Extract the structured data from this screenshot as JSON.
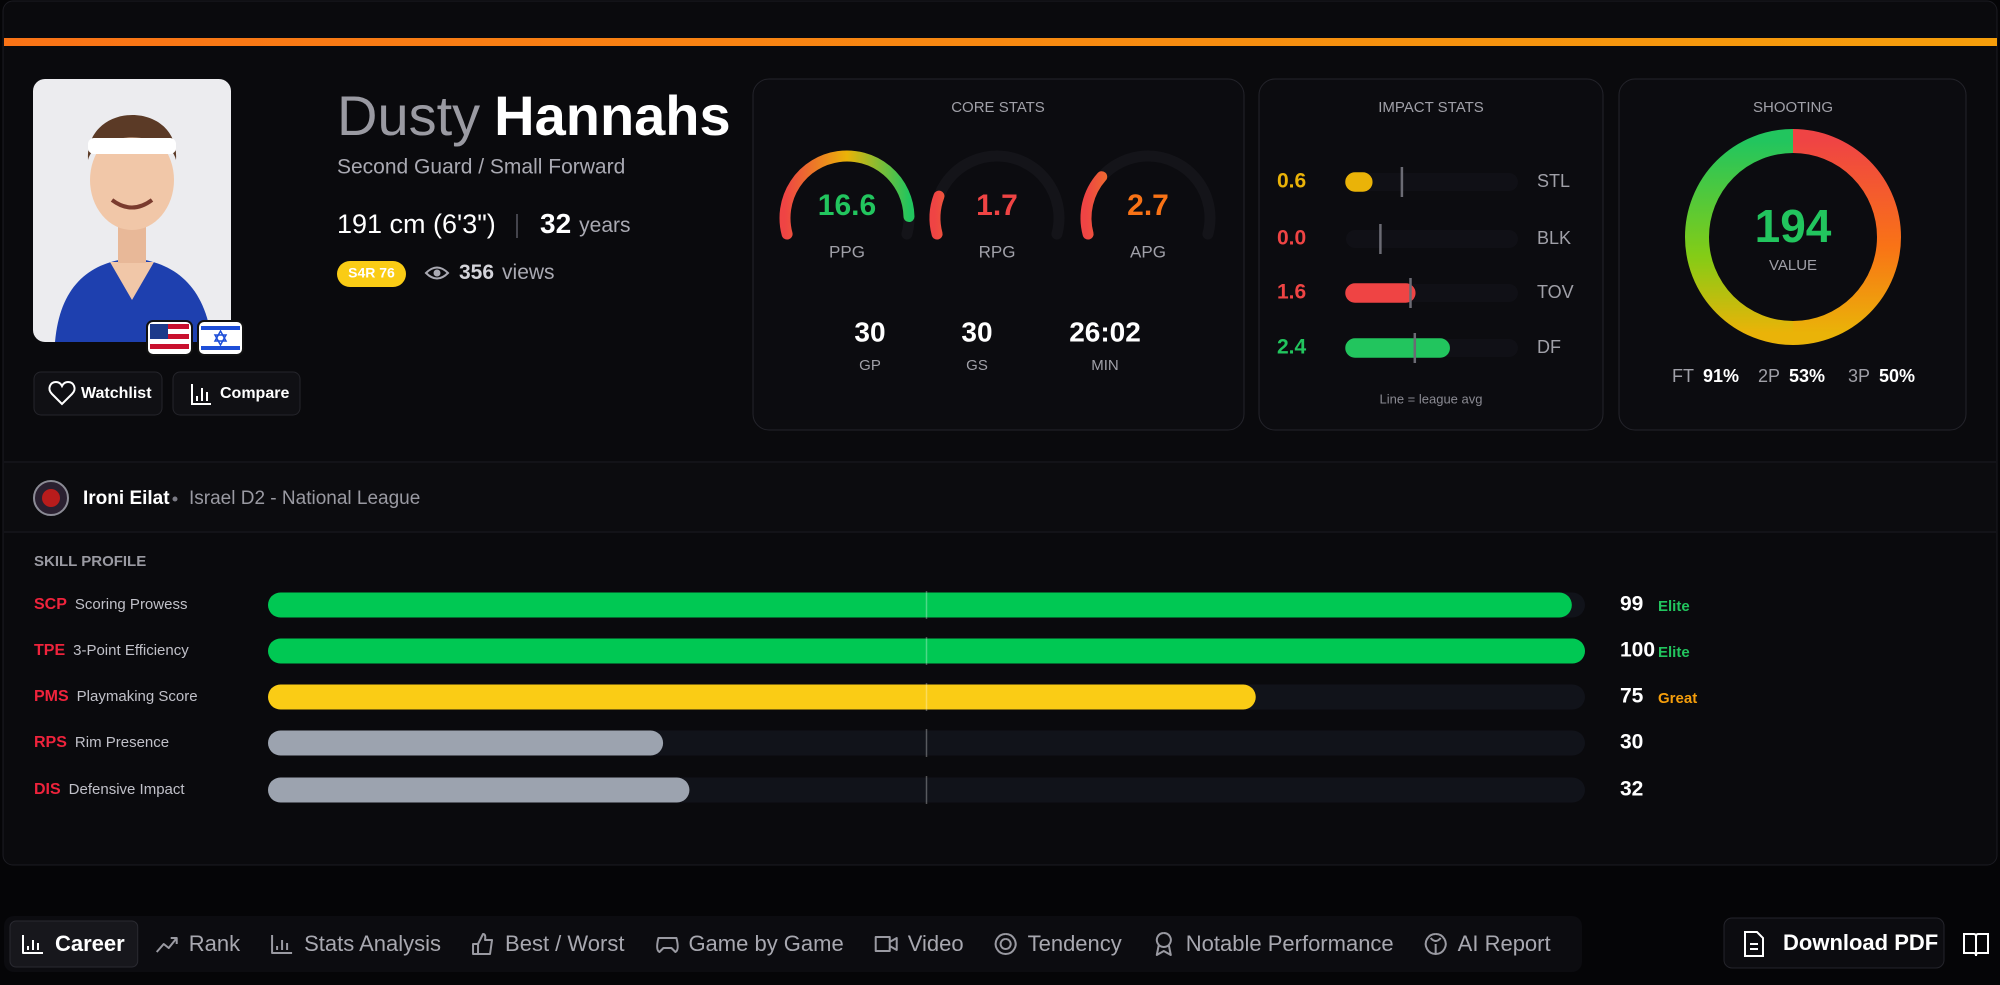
{
  "header": {
    "first_name": "Dusty",
    "last_name": "Hannahs",
    "position": "Second Guard / Small Forward",
    "height": "191 cm (6'3\")",
    "age": 32,
    "age_unit": "years",
    "rating_badge": "S4R 76",
    "views": 356,
    "views_label": "views"
  },
  "actions": [
    "Watchlist",
    "Compare"
  ],
  "core_stats": {
    "title": "CORE STATS",
    "gauges": [
      {
        "label": "PPG",
        "value": 16.6,
        "range": [
          0,
          18
        ],
        "color": "#22c55e"
      },
      {
        "label": "RPG",
        "value": 1.7,
        "range": [
          0,
          10
        ],
        "color": "#ef4444"
      },
      {
        "label": "APG",
        "value": 2.7,
        "range": [
          0,
          10
        ],
        "color": "#f97316"
      }
    ],
    "totals": [
      {
        "label": "GP",
        "value": 30
      },
      {
        "label": "GS",
        "value": 30
      },
      {
        "label": "MIN",
        "value": "26:02"
      }
    ]
  },
  "impact_stats": {
    "title": "IMPACT STATS",
    "xlim": [
      0,
      4
    ],
    "rows": [
      {
        "label": "STL",
        "value": 0.6,
        "league_avg": 1.3,
        "color": "#eab308"
      },
      {
        "label": "BLK",
        "value": 0,
        "value_label": "0.0",
        "league_avg": 0.8,
        "color": "#ef4444"
      },
      {
        "label": "TOV",
        "value": 1.6,
        "league_avg": 1.5,
        "color": "#ef4444"
      },
      {
        "label": "DF",
        "value": 2.4,
        "league_avg": 1.6,
        "color": "#22c55e"
      }
    ],
    "note": "Line = league avg"
  },
  "shooting": {
    "title": "SHOOTING",
    "value": 194,
    "value_label": "VALUE",
    "splits": [
      {
        "label": "FT",
        "value": 91,
        "value_label": "91%"
      },
      {
        "label": "2P",
        "value": 53,
        "value_label": "53%"
      },
      {
        "label": "3P",
        "value": 50,
        "value_label": "50%"
      }
    ]
  },
  "team": {
    "name": "Ironi Eilat",
    "league": "Israel D2 - National League"
  },
  "skill_profile": {
    "title": "SKILL PROFILE",
    "xlim": [
      0,
      100
    ],
    "midline": 50,
    "rows": [
      {
        "code": "SCP",
        "name": "Scoring Prowess",
        "value": 99,
        "tier": "Elite",
        "color": "#00c853",
        "tier_color": "#22c55e"
      },
      {
        "code": "TPE",
        "name": "3-Point Efficiency",
        "value": 100,
        "tier": "Elite",
        "color": "#00c853",
        "tier_color": "#22c55e"
      },
      {
        "code": "PMS",
        "name": "Playmaking Score",
        "value": 75,
        "tier": "Great",
        "color": "#facc15",
        "tier_color": "#f59e0b"
      },
      {
        "code": "RPS",
        "name": "Rim Presence",
        "value": 30,
        "color": "#9ca3af"
      },
      {
        "code": "DIS",
        "name": "Defensive Impact",
        "value": 32,
        "color": "#9ca3af"
      }
    ]
  },
  "tabs": {
    "items": [
      "Career",
      "Rank",
      "Stats Analysis",
      "Best / Worst",
      "Game by Game",
      "Video",
      "Tendency",
      "Notable Performance",
      "AI Report"
    ],
    "active": 0
  },
  "download": "Download PDF"
}
